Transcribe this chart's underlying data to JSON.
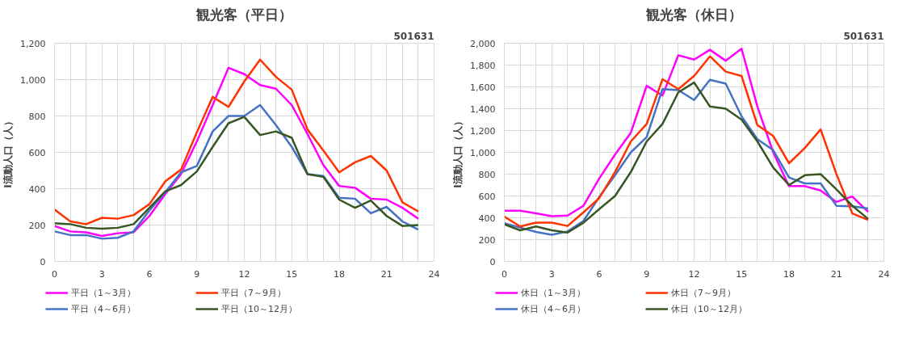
{
  "chart_data": [
    {
      "type": "line",
      "title": "観光客（平日）",
      "annotations": [
        "501631"
      ],
      "ylabel": "I流動人口（人）",
      "x": [
        0,
        1,
        2,
        3,
        4,
        5,
        6,
        7,
        8,
        9,
        10,
        11,
        12,
        13,
        14,
        15,
        16,
        17,
        18,
        19,
        20,
        21,
        22,
        23
      ],
      "xlim": [
        0,
        24
      ],
      "xticks": [
        0,
        {
          "value": 1,
          "label": null
        },
        {
          "value": 2,
          "label": null
        },
        3,
        {
          "value": 4,
          "label": null
        },
        {
          "value": 5,
          "label": null
        },
        6,
        {
          "value": 7,
          "label": null
        },
        {
          "value": 8,
          "label": null
        },
        9,
        {
          "value": 10,
          "label": null
        },
        {
          "value": 11,
          "label": null
        },
        12,
        {
          "value": 13,
          "label": null
        },
        {
          "value": 14,
          "label": null
        },
        15,
        {
          "value": 16,
          "label": null
        },
        {
          "value": 17,
          "label": null
        },
        18,
        {
          "value": 19,
          "label": null
        },
        {
          "value": 20,
          "label": null
        },
        21,
        {
          "value": 22,
          "label": null
        },
        {
          "value": 23,
          "label": null
        },
        24
      ],
      "ylim": [
        0,
        1200
      ],
      "yticks": [
        0,
        200,
        400,
        600,
        800,
        {
          "value": 1000,
          "label": "1,000"
        },
        {
          "value": 1200,
          "label": "1,200"
        }
      ],
      "grid": true,
      "legend": "bottom",
      "marker": "none",
      "line_style": "solid",
      "series": [
        {
          "name": "平日（1～3月）",
          "color": "#ff00ff",
          "values": [
            195,
            165,
            160,
            140,
            155,
            160,
            250,
            370,
            480,
            660,
            860,
            1065,
            1030,
            970,
            950,
            860,
            700,
            530,
            415,
            405,
            345,
            340,
            295,
            235
          ]
        },
        {
          "name": "平日（4～6月）",
          "color": "#4472c4",
          "values": [
            165,
            145,
            145,
            125,
            130,
            165,
            280,
            380,
            490,
            525,
            715,
            800,
            800,
            860,
            750,
            630,
            480,
            470,
            350,
            345,
            265,
            300,
            220,
            175
          ]
        },
        {
          "name": "平日（7～9月）",
          "color": "#ff3300",
          "values": [
            285,
            220,
            205,
            240,
            235,
            255,
            315,
            440,
            505,
            710,
            905,
            850,
            990,
            1110,
            1015,
            945,
            725,
            610,
            490,
            545,
            580,
            500,
            325,
            275
          ]
        },
        {
          "name": "平日（10～12月）",
          "color": "#375623",
          "values": [
            210,
            205,
            185,
            180,
            185,
            205,
            295,
            385,
            420,
            495,
            630,
            760,
            795,
            695,
            715,
            680,
            480,
            465,
            340,
            295,
            335,
            250,
            195,
            200
          ]
        }
      ]
    },
    {
      "type": "line",
      "title": "観光客（休日）",
      "annotations": [
        "501631"
      ],
      "ylabel": "I流動人口（人）",
      "x": [
        0,
        1,
        2,
        3,
        4,
        5,
        6,
        7,
        8,
        9,
        10,
        11,
        12,
        13,
        14,
        15,
        16,
        17,
        18,
        19,
        20,
        21,
        22,
        23
      ],
      "xlim": [
        0,
        24
      ],
      "xticks": [
        0,
        {
          "value": 1,
          "label": null
        },
        {
          "value": 2,
          "label": null
        },
        3,
        {
          "value": 4,
          "label": null
        },
        {
          "value": 5,
          "label": null
        },
        6,
        {
          "value": 7,
          "label": null
        },
        {
          "value": 8,
          "label": null
        },
        9,
        {
          "value": 10,
          "label": null
        },
        {
          "value": 11,
          "label": null
        },
        12,
        {
          "value": 13,
          "label": null
        },
        {
          "value": 14,
          "label": null
        },
        15,
        {
          "value": 16,
          "label": null
        },
        {
          "value": 17,
          "label": null
        },
        18,
        {
          "value": 19,
          "label": null
        },
        {
          "value": 20,
          "label": null
        },
        21,
        {
          "value": 22,
          "label": null
        },
        {
          "value": 23,
          "label": null
        },
        24
      ],
      "ylim": [
        0,
        2000
      ],
      "yticks": [
        0,
        200,
        400,
        600,
        800,
        {
          "value": 1000,
          "label": "1,000"
        },
        {
          "value": 1200,
          "label": "1,200"
        },
        {
          "value": 1400,
          "label": "1,400"
        },
        {
          "value": 1600,
          "label": "1,600"
        },
        {
          "value": 1800,
          "label": "1,800"
        },
        {
          "value": 2000,
          "label": "2,000"
        }
      ],
      "grid": true,
      "legend": "bottom",
      "marker": "none",
      "line_style": "solid",
      "series": [
        {
          "name": "休日（1～3月）",
          "color": "#ff00ff",
          "values": [
            465,
            465,
            440,
            415,
            420,
            510,
            760,
            980,
            1180,
            1610,
            1520,
            1890,
            1850,
            1940,
            1840,
            1950,
            1420,
            1000,
            690,
            690,
            650,
            545,
            595,
            455
          ]
        },
        {
          "name": "休日（4～6月）",
          "color": "#4472c4",
          "values": [
            350,
            310,
            270,
            245,
            275,
            370,
            590,
            790,
            1000,
            1140,
            1580,
            1570,
            1480,
            1665,
            1630,
            1330,
            1120,
            1020,
            770,
            715,
            715,
            510,
            505,
            485
          ]
        },
        {
          "name": "休日（7～9月）",
          "color": "#ff3300",
          "values": [
            410,
            320,
            355,
            355,
            325,
            450,
            580,
            820,
            1100,
            1260,
            1670,
            1580,
            1700,
            1880,
            1740,
            1700,
            1250,
            1150,
            900,
            1040,
            1210,
            800,
            440,
            380
          ]
        },
        {
          "name": "休日（10～12月）",
          "color": "#375623",
          "values": [
            340,
            285,
            320,
            285,
            265,
            355,
            480,
            600,
            820,
            1100,
            1260,
            1550,
            1640,
            1420,
            1400,
            1300,
            1100,
            860,
            700,
            790,
            800,
            660,
            510,
            390
          ]
        }
      ]
    }
  ]
}
